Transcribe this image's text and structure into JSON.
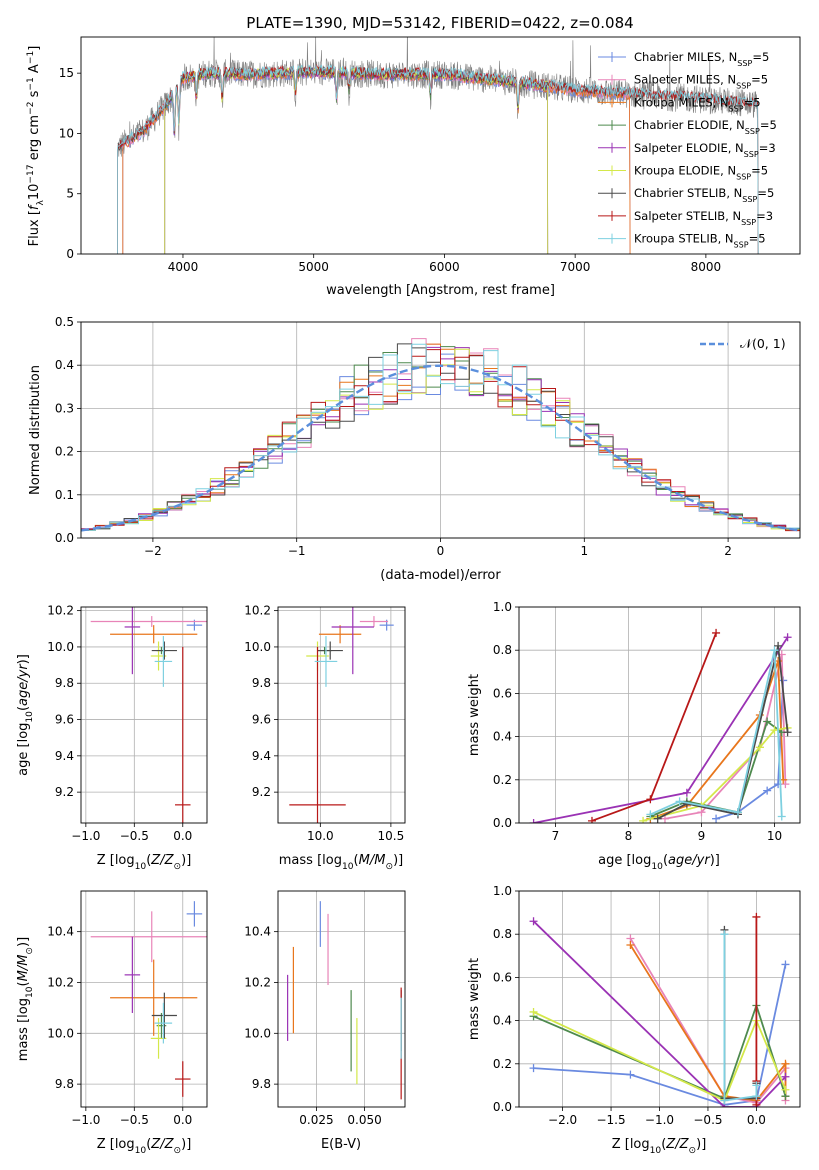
{
  "figure_title": "PLATE=1390, MJD=53142, FIBERID=0422, z=0.084",
  "colors": {
    "Chabrier MILES": "#6a8ae0",
    "Salpeter MILES": "#e884b8",
    "Kroupa MILES": "#e8761c",
    "Chabrier ELODIE": "#4e8a4e",
    "Salpeter ELODIE": "#9a32b4",
    "Kroupa ELODIE": "#d4e84a",
    "Chabrier STELIB": "#4a4a4a",
    "Salpeter STELIB": "#b81818",
    "Kroupa STELIB": "#7ed0e0",
    "data": "#808080",
    "normal": "#5b8fdc"
  },
  "chart_data": [
    {
      "id": "spectrum",
      "type": "line",
      "title": "PLATE=1390, MJD=53142, FIBERID=0422, z=0.084",
      "xlabel": "wavelength [Angstrom, rest frame]",
      "ylabel": "Flux [f_λ 10^-17 erg cm^-2 s^-1 A^-1]",
      "xlim": [
        3220,
        8720
      ],
      "ylim": [
        0,
        18
      ],
      "xticks": [
        4000,
        5000,
        6000,
        7000,
        8000
      ],
      "yticks": [
        0,
        5,
        10,
        15
      ],
      "grid": false,
      "legend_position": "top-right",
      "legend": [
        "Chabrier MILES, N_SSP=5",
        "Salpeter MILES, N_SSP=5",
        "Kroupa MILES, N_SSP=5",
        "Chabrier ELODIE, N_SSP=5",
        "Salpeter ELODIE, N_SSP=3",
        "Kroupa ELODIE, N_SSP=5",
        "Chabrier STELIB, N_SSP=5",
        "Salpeter STELIB, N_SSP=3",
        "Kroupa STELIB, N_SSP=5"
      ],
      "continuum": [
        [
          3500,
          8.8
        ],
        [
          3700,
          10.2
        ],
        [
          3900,
          12.8
        ],
        [
          4000,
          14.6
        ],
        [
          4200,
          15.0
        ],
        [
          4500,
          14.9
        ],
        [
          5000,
          15.1
        ],
        [
          5500,
          14.9
        ],
        [
          6000,
          14.9
        ],
        [
          6500,
          14.3
        ],
        [
          7000,
          13.6
        ],
        [
          7500,
          13.2
        ],
        [
          8000,
          12.8
        ],
        [
          8400,
          12.4
        ]
      ],
      "model_ranges": {
        "MILES": [
          3540,
          7420
        ],
        "ELODIE": [
          3860,
          6790
        ],
        "STELIB": [
          3500,
          8400
        ]
      },
      "absorption_lines": [
        [
          3934,
          4.0
        ],
        [
          3969,
          3.5
        ],
        [
          4102,
          2.0
        ],
        [
          4300,
          2.5
        ],
        [
          4861,
          2.0
        ],
        [
          5175,
          2.5
        ],
        [
          5270,
          1.5
        ],
        [
          5893,
          2.0
        ],
        [
          6563,
          2.5
        ]
      ]
    },
    {
      "id": "residuals",
      "type": "histogram",
      "xlabel": "(data-model)/error",
      "ylabel": "Normed distribution",
      "xlim": [
        -2.5,
        2.5
      ],
      "ylim": [
        0,
        0.5
      ],
      "xticks": [
        -2,
        -1,
        0,
        1,
        2
      ],
      "yticks": [
        0.0,
        0.1,
        0.2,
        0.3,
        0.4,
        0.5
      ],
      "grid": true,
      "legend": [
        "𝒩(0, 1)"
      ],
      "legend_position": "top-right",
      "bin_width": 0.1,
      "normal_curve": {
        "mean": 0,
        "sigma": 1
      }
    },
    {
      "id": "age_vs_Z",
      "type": "scatter",
      "xlabel": "Z [log10(Z/Z⊙)]",
      "ylabel": "age  [log10(age/yr)]",
      "xlim": [
        -1.05,
        0.25
      ],
      "ylim": [
        9.03,
        10.22
      ],
      "xticks": [
        -1.0,
        -0.5,
        0.0
      ],
      "yticks": [
        9.2,
        9.4,
        9.6,
        9.8,
        10.0,
        10.2
      ],
      "grid": true,
      "points": [
        {
          "model": "Chabrier MILES",
          "x": 0.12,
          "y": 10.12,
          "xerr": 0.08,
          "yerr": 0.03
        },
        {
          "model": "Salpeter MILES",
          "x": -0.32,
          "y": 10.14,
          "xerr": 0.63,
          "yerr": 0.03
        },
        {
          "model": "Kroupa MILES",
          "x": -0.3,
          "y": 10.07,
          "xerr": 0.45,
          "yerr": 0.05
        },
        {
          "model": "Chabrier ELODIE",
          "x": -0.22,
          "y": 9.98,
          "xerr": 0.05,
          "yerr": 0.02
        },
        {
          "model": "Salpeter ELODIE",
          "x": -0.52,
          "y": 10.11,
          "xerr": 0.08,
          "yerr": 0.26
        },
        {
          "model": "Kroupa ELODIE",
          "x": -0.25,
          "y": 9.95,
          "xerr": 0.08,
          "yerr": 0.08
        },
        {
          "model": "Chabrier STELIB",
          "x": -0.19,
          "y": 9.98,
          "xerr": 0.13,
          "yerr": 0.05
        },
        {
          "model": "Salpeter STELIB",
          "x": 0.0,
          "y": 9.13,
          "xerr": 0.08,
          "yerr": 0.87
        },
        {
          "model": "Kroupa STELIB",
          "x": -0.2,
          "y": 9.92,
          "xerr": 0.09,
          "yerr": 0.14
        }
      ]
    },
    {
      "id": "age_vs_mass",
      "type": "scatter",
      "xlabel": "mass [log10(M/M⊙)]",
      "ylabel": "",
      "xlim": [
        9.7,
        10.6
      ],
      "ylim": [
        9.03,
        10.22
      ],
      "xticks": [
        10.0,
        10.5
      ],
      "yticks": [
        9.2,
        9.4,
        9.6,
        9.8,
        10.0,
        10.2
      ],
      "grid": true,
      "points": [
        {
          "model": "Chabrier MILES",
          "x": 10.47,
          "y": 10.12,
          "xerr": 0.05,
          "yerr": 0.03
        },
        {
          "model": "Salpeter MILES",
          "x": 10.38,
          "y": 10.14,
          "xerr": 0.1,
          "yerr": 0.03
        },
        {
          "model": "Kroupa MILES",
          "x": 10.14,
          "y": 10.07,
          "xerr": 0.15,
          "yerr": 0.05
        },
        {
          "model": "Chabrier ELODIE",
          "x": 10.03,
          "y": 9.98,
          "xerr": 0.05,
          "yerr": 0.02
        },
        {
          "model": "Salpeter ELODIE",
          "x": 10.23,
          "y": 10.11,
          "xerr": 0.15,
          "yerr": 0.26
        },
        {
          "model": "Kroupa ELODIE",
          "x": 9.98,
          "y": 9.95,
          "xerr": 0.08,
          "yerr": 0.08
        },
        {
          "model": "Chabrier STELIB",
          "x": 10.07,
          "y": 9.98,
          "xerr": 0.09,
          "yerr": 0.05
        },
        {
          "model": "Salpeter STELIB",
          "x": 9.98,
          "y": 9.13,
          "xerr": 0.2,
          "yerr": 0.87
        },
        {
          "model": "Kroupa STELIB",
          "x": 10.04,
          "y": 9.92,
          "xerr": 0.08,
          "yerr": 0.14
        }
      ]
    },
    {
      "id": "sfh_age",
      "type": "line",
      "xlabel": "age  [log10(age/yr)]",
      "ylabel": "mass weight",
      "xlim": [
        6.5,
        10.35
      ],
      "ylim": [
        0,
        1
      ],
      "xticks": [
        7,
        8,
        9,
        10
      ],
      "yticks": [
        0.0,
        0.2,
        0.4,
        0.6,
        0.8,
        1.0
      ],
      "grid": true,
      "series": [
        {
          "model": "Chabrier MILES",
          "x": [
            9.2,
            9.5,
            9.9,
            10.05,
            10.12
          ],
          "y": [
            0.02,
            0.05,
            0.15,
            0.18,
            0.66
          ]
        },
        {
          "model": "Salpeter MILES",
          "x": [
            8.5,
            9.0,
            9.8,
            10.1,
            10.15
          ],
          "y": [
            0.02,
            0.05,
            0.35,
            0.78,
            0.18
          ]
        },
        {
          "model": "Kroupa MILES",
          "x": [
            8.3,
            8.8,
            9.8,
            10.05,
            10.12
          ],
          "y": [
            0.02,
            0.08,
            0.5,
            0.75,
            0.2
          ]
        },
        {
          "model": "Chabrier ELODIE",
          "x": [
            8.3,
            8.8,
            9.5,
            9.9,
            10.1
          ],
          "y": [
            0.03,
            0.1,
            0.05,
            0.47,
            0.42
          ]
        },
        {
          "model": "Salpeter ELODIE",
          "x": [
            6.7,
            8.8,
            10.18
          ],
          "y": [
            0.0,
            0.14,
            0.86
          ]
        },
        {
          "model": "Kroupa ELODIE",
          "x": [
            8.2,
            9.0,
            9.8,
            10.0,
            10.18
          ],
          "y": [
            0.01,
            0.08,
            0.35,
            0.43,
            0.44
          ]
        },
        {
          "model": "Chabrier STELIB",
          "x": [
            8.4,
            8.8,
            9.5,
            10.05,
            10.18
          ],
          "y": [
            0.02,
            0.09,
            0.04,
            0.82,
            0.42
          ]
        },
        {
          "model": "Salpeter STELIB",
          "x": [
            7.5,
            8.3,
            9.2
          ],
          "y": [
            0.01,
            0.11,
            0.88
          ]
        },
        {
          "model": "Kroupa STELIB",
          "x": [
            8.3,
            8.7,
            9.5,
            10.0,
            10.1
          ],
          "y": [
            0.04,
            0.1,
            0.05,
            0.8,
            0.03
          ]
        }
      ]
    },
    {
      "id": "mass_vs_Z",
      "type": "scatter",
      "xlabel": "Z [log10(Z/Z⊙)]",
      "ylabel": "mass [log10(M/M⊙)]",
      "xlim": [
        -1.05,
        0.25
      ],
      "ylim": [
        9.71,
        10.56
      ],
      "xticks": [
        -1.0,
        -0.5,
        0.0
      ],
      "yticks": [
        9.8,
        10.0,
        10.2,
        10.4
      ],
      "grid": true,
      "points": [
        {
          "model": "Chabrier MILES",
          "x": 0.12,
          "y": 10.47,
          "xerr": 0.08,
          "yerr": 0.05
        },
        {
          "model": "Salpeter MILES",
          "x": -0.32,
          "y": 10.38,
          "xerr": 0.63,
          "yerr": 0.1
        },
        {
          "model": "Kroupa MILES",
          "x": -0.3,
          "y": 10.14,
          "xerr": 0.45,
          "yerr": 0.15
        },
        {
          "model": "Chabrier ELODIE",
          "x": -0.22,
          "y": 10.03,
          "xerr": 0.05,
          "yerr": 0.05
        },
        {
          "model": "Salpeter ELODIE",
          "x": -0.52,
          "y": 10.23,
          "xerr": 0.08,
          "yerr": 0.15
        },
        {
          "model": "Kroupa ELODIE",
          "x": -0.25,
          "y": 9.98,
          "xerr": 0.08,
          "yerr": 0.08
        },
        {
          "model": "Chabrier STELIB",
          "x": -0.19,
          "y": 10.07,
          "xerr": 0.13,
          "yerr": 0.09
        },
        {
          "model": "Salpeter STELIB",
          "x": 0.0,
          "y": 9.82,
          "xerr": 0.08,
          "yerr": 0.07
        },
        {
          "model": "Kroupa STELIB",
          "x": -0.2,
          "y": 10.04,
          "xerr": 0.09,
          "yerr": 0.08
        }
      ]
    },
    {
      "id": "mass_vs_ebv",
      "type": "scatter",
      "xlabel": "E(B-V)",
      "ylabel": "",
      "xlim": [
        0.005,
        0.071
      ],
      "ylim": [
        9.71,
        10.56
      ],
      "xticks": [
        0.025,
        0.05
      ],
      "yticks": [
        9.8,
        10.0,
        10.2,
        10.4
      ],
      "grid": true,
      "points": [
        {
          "model": "Chabrier MILES",
          "x": 0.027,
          "y": 10.43,
          "yerr": 0.09
        },
        {
          "model": "Salpeter MILES",
          "x": 0.031,
          "y": 10.33,
          "yerr": 0.14
        },
        {
          "model": "Kroupa MILES",
          "x": 0.013,
          "y": 10.17,
          "yerr": 0.17
        },
        {
          "model": "Chabrier ELODIE",
          "x": 0.043,
          "y": 10.01,
          "yerr": 0.16
        },
        {
          "model": "Salpeter ELODIE",
          "x": 0.01,
          "y": 10.1,
          "yerr": 0.13
        },
        {
          "model": "Kroupa ELODIE",
          "x": 0.046,
          "y": 9.93,
          "yerr": 0.13
        },
        {
          "model": "Chabrier STELIB",
          "x": 0.069,
          "y": 10.05,
          "yerr": 0.12
        },
        {
          "model": "Salpeter STELIB",
          "x": 0.069,
          "y": 9.96,
          "yerr": 0.22
        },
        {
          "model": "Kroupa STELIB",
          "x": 0.069,
          "y": 10.02,
          "yerr": 0.12
        }
      ]
    },
    {
      "id": "sfh_Z",
      "type": "line",
      "xlabel": "Z [log10(Z/Z⊙)]",
      "ylabel": "mass weight",
      "xlim": [
        -2.45,
        0.45
      ],
      "ylim": [
        0,
        1
      ],
      "xticks": [
        -2.0,
        -1.5,
        -1.0,
        -0.5,
        0.0
      ],
      "yticks": [
        0.0,
        0.2,
        0.4,
        0.6,
        0.8,
        1.0
      ],
      "grid": true,
      "series": [
        {
          "model": "Chabrier MILES",
          "x": [
            -2.3,
            -1.3,
            -0.33,
            0.0,
            0.3
          ],
          "y": [
            0.18,
            0.15,
            0.01,
            0.03,
            0.66
          ]
        },
        {
          "model": "Salpeter MILES",
          "x": [
            -1.3,
            -0.33,
            0.0,
            0.3,
            0.3
          ],
          "y": [
            0.78,
            0.05,
            0.02,
            0.18,
            0.03
          ]
        },
        {
          "model": "Kroupa MILES",
          "x": [
            -1.3,
            -0.33,
            0.0,
            0.3,
            0.3
          ],
          "y": [
            0.75,
            0.05,
            0.03,
            0.2,
            0.05
          ]
        },
        {
          "model": "Chabrier ELODIE",
          "x": [
            -2.3,
            -0.33,
            0.0,
            0.3
          ],
          "y": [
            0.42,
            0.04,
            0.47,
            0.05
          ]
        },
        {
          "model": "Salpeter ELODIE",
          "x": [
            -2.3,
            -0.33,
            0.0,
            0.3
          ],
          "y": [
            0.86,
            0.0,
            0.0,
            0.14
          ]
        },
        {
          "model": "Kroupa ELODIE",
          "x": [
            -2.3,
            -0.33,
            0.0,
            0.3
          ],
          "y": [
            0.44,
            0.03,
            0.4,
            0.08
          ]
        },
        {
          "model": "Chabrier STELIB",
          "x": [
            -0.33,
            -0.33,
            0.0,
            0.0
          ],
          "y": [
            0.82,
            0.04,
            0.04,
            0.11
          ]
        },
        {
          "model": "Salpeter STELIB",
          "x": [
            0.0,
            0.0,
            0.0
          ],
          "y": [
            0.88,
            0.12,
            0.01
          ]
        },
        {
          "model": "Kroupa STELIB",
          "x": [
            -0.33,
            -0.33,
            0.0,
            0.0
          ],
          "y": [
            0.8,
            0.03,
            0.05,
            0.1
          ]
        }
      ]
    }
  ]
}
